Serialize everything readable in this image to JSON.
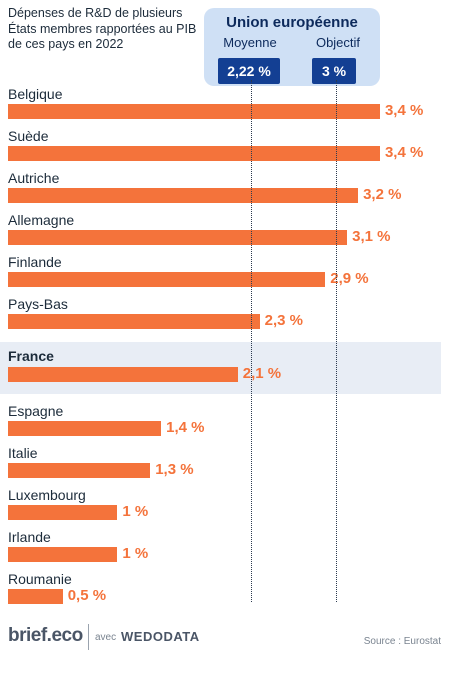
{
  "title": "Dépenses de R&D de plusieurs États membres rapportées au PIB de ces pays en 2022",
  "eu": {
    "title": "Union européenne",
    "average_label": "Moyenne",
    "average_value": "2,22 %",
    "target_label": "Objectif",
    "target_value": "3 %"
  },
  "chart_data": {
    "type": "bar",
    "orientation": "horizontal",
    "title": "Dépenses de R&D de plusieurs États membres rapportées au PIB de ces pays en 2022",
    "categories": [
      "Belgique",
      "Suède",
      "Autriche",
      "Allemagne",
      "Finlande",
      "Pays-Bas",
      "France",
      "Espagne",
      "Italie",
      "Luxembourg",
      "Irlande",
      "Roumanie"
    ],
    "values": [
      3.4,
      3.4,
      3.2,
      3.1,
      2.9,
      2.3,
      2.1,
      1.4,
      1.3,
      1.0,
      1.0,
      0.5
    ],
    "value_labels": [
      "3,4 %",
      "3,4 %",
      "3,2 %",
      "3,1 %",
      "2,9 %",
      "2,3 %",
      "2,1 %",
      "1,4 %",
      "1,3 %",
      "1 %",
      "1 %",
      "0,5 %"
    ],
    "highlight": "France",
    "bar_color": "#f4733b",
    "highlight_band_color": "#e8edf5",
    "reference_lines": [
      {
        "label": "Moyenne",
        "value": 2.22
      },
      {
        "label": "Objectif",
        "value": 3.0
      }
    ],
    "xlim": [
      0,
      3.5
    ]
  },
  "footer": {
    "logo": "brief.eco",
    "avec": "avec",
    "partner": "WEDODATA",
    "source": "Source : Eurostat"
  }
}
